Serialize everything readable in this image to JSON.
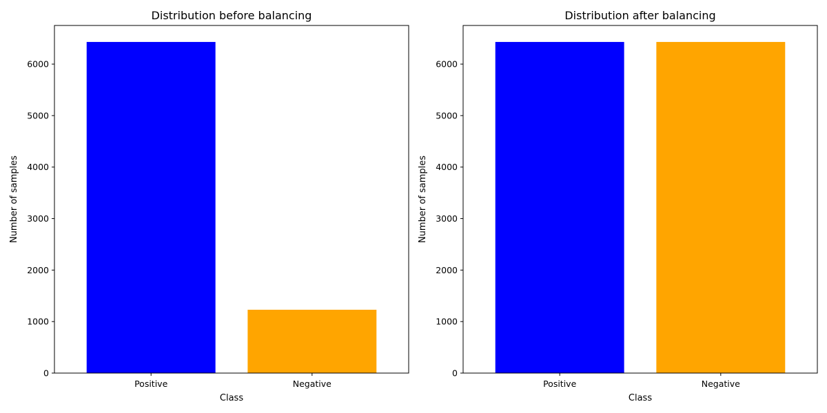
{
  "chart_data": [
    {
      "type": "bar",
      "title": "Distribution before balancing",
      "xlabel": "Class",
      "ylabel": "Number of samples",
      "categories": [
        "Positive",
        "Negative"
      ],
      "values": [
        6430,
        1230
      ],
      "colors": [
        "#0000ff",
        "#ffa500"
      ],
      "ylim": [
        0,
        6750
      ],
      "yticks": [
        0,
        1000,
        2000,
        3000,
        4000,
        5000,
        6000
      ],
      "grid": false
    },
    {
      "type": "bar",
      "title": "Distribution after balancing",
      "xlabel": "Class",
      "ylabel": "Number of samples",
      "categories": [
        "Positive",
        "Negative"
      ],
      "values": [
        6430,
        6430
      ],
      "colors": [
        "#0000ff",
        "#ffa500"
      ],
      "ylim": [
        0,
        6750
      ],
      "yticks": [
        0,
        1000,
        2000,
        3000,
        4000,
        5000,
        6000
      ],
      "grid": false
    }
  ]
}
